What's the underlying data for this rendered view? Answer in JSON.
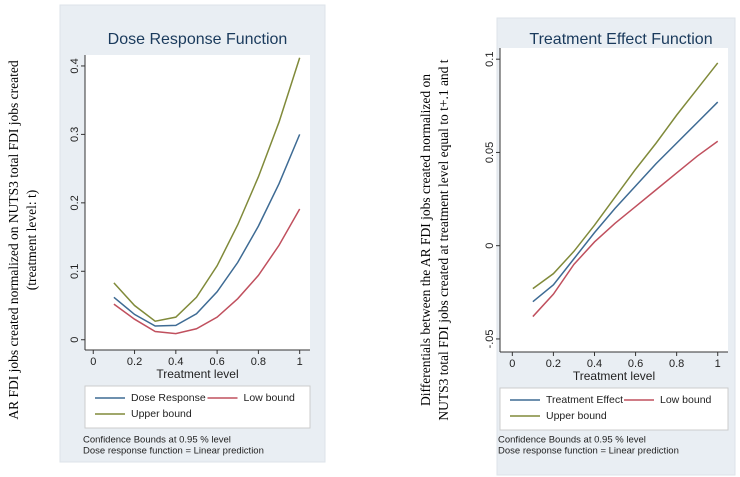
{
  "chart_data": [
    {
      "type": "line",
      "title": "Dose Response Function",
      "ylabel": [
        "AR FDI jobs created normalized on NUTS3 total FDI jobs created",
        "(treatment level: t)"
      ],
      "xlabel": "Treatment level",
      "x": [
        0.1,
        0.2,
        0.3,
        0.4,
        0.5,
        0.6,
        0.7,
        0.8,
        0.9,
        1.0
      ],
      "series": [
        {
          "name": "Dose Response",
          "color": "#3e6b94",
          "values": [
            0.062,
            0.037,
            0.02,
            0.021,
            0.038,
            0.07,
            0.113,
            0.166,
            0.228,
            0.3
          ]
        },
        {
          "name": "Low bound",
          "color": "#c0505e",
          "values": [
            0.052,
            0.03,
            0.012,
            0.009,
            0.016,
            0.033,
            0.06,
            0.094,
            0.138,
            0.191
          ]
        },
        {
          "name": "Upper bound",
          "color": "#808a3a",
          "values": [
            0.083,
            0.05,
            0.027,
            0.033,
            0.062,
            0.108,
            0.168,
            0.238,
            0.318,
            0.412
          ]
        }
      ],
      "xlim": [
        -0.04,
        1.05
      ],
      "xticks": [
        0,
        0.2,
        0.4,
        0.6,
        0.8,
        1
      ],
      "ylim": [
        -0.015,
        0.416
      ],
      "yticks": [
        0,
        0.1,
        0.2,
        0.3,
        0.4
      ],
      "notes": [
        "Confidence Bounds at 0.95 % level",
        "Dose response function = Linear prediction"
      ]
    },
    {
      "type": "line",
      "title": "Treatment Effect Function",
      "ylabel": [
        "Differentials between the AR FDI jobs created normalized on",
        "NUTS3 total FDI jobs created at treatment level equal to t+.1 and t"
      ],
      "xlabel": "Treatment level",
      "x": [
        0.1,
        0.2,
        0.3,
        0.4,
        0.5,
        0.6,
        0.7,
        0.8,
        0.9,
        1.0
      ],
      "series": [
        {
          "name": "Treatment Effect",
          "color": "#3e6b94",
          "values": [
            -0.03,
            -0.021,
            -0.007,
            0.007,
            0.02,
            0.032,
            0.044,
            0.055,
            0.066,
            0.077
          ]
        },
        {
          "name": "Low bound",
          "color": "#c0505e",
          "values": [
            -0.038,
            -0.026,
            -0.01,
            0.002,
            0.012,
            0.021,
            0.03,
            0.039,
            0.048,
            0.056
          ]
        },
        {
          "name": "Upper bound",
          "color": "#808a3a",
          "values": [
            -0.023,
            -0.015,
            -0.003,
            0.011,
            0.026,
            0.041,
            0.055,
            0.07,
            0.084,
            0.098
          ]
        }
      ],
      "xlim": [
        -0.06,
        1.05
      ],
      "xticks": [
        0,
        0.2,
        0.4,
        0.6,
        0.8,
        1
      ],
      "ylim": [
        -0.057,
        0.106
      ],
      "yticks": [
        {
          "value": -0.05,
          "label": "-.05"
        },
        0,
        0.05,
        0.1
      ],
      "notes": [
        "Confidence Bounds at 0.95 % level",
        "Dose response function = Linear prediction"
      ]
    }
  ]
}
